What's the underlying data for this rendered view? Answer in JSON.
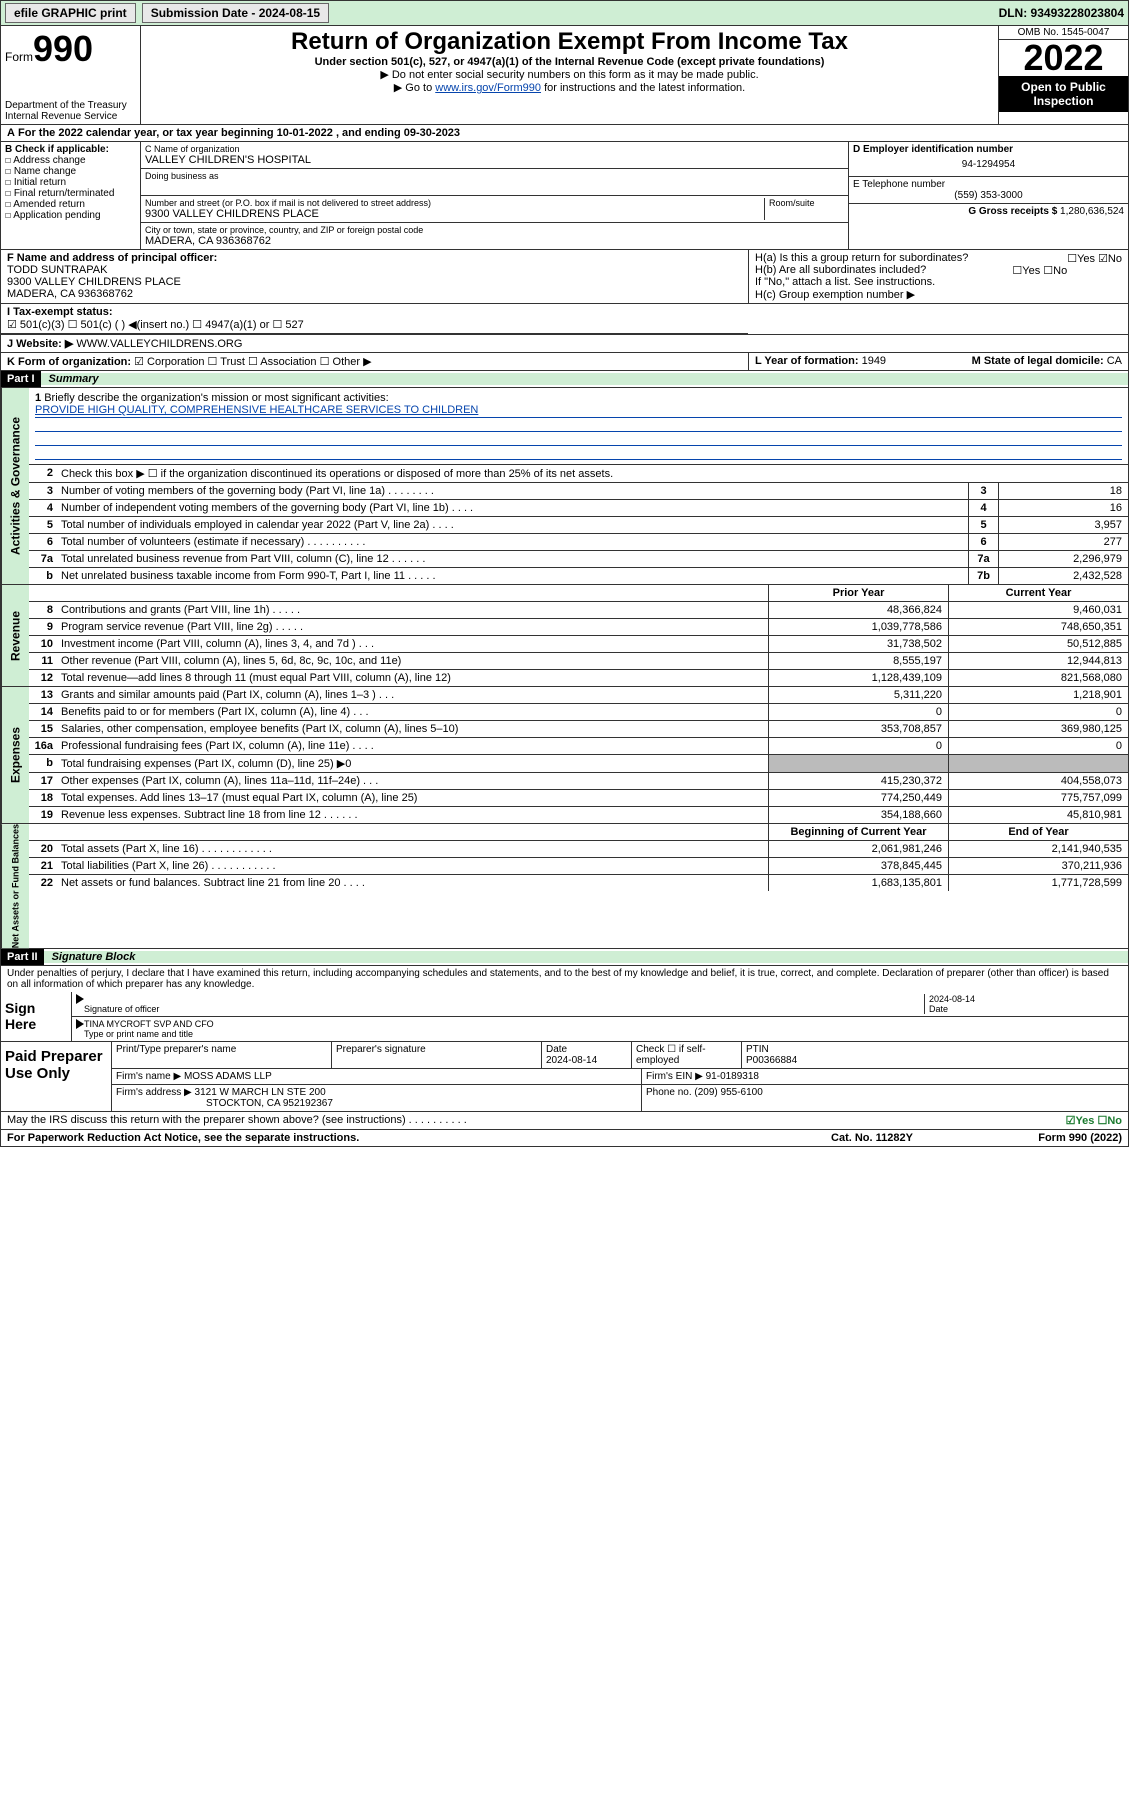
{
  "topbar": {
    "efile": "efile GRAPHIC print",
    "submission_label": "Submission Date - 2024-08-15",
    "dln": "DLN: 93493228023804"
  },
  "header": {
    "form_prefix": "Form",
    "form_num": "990",
    "dept": "Department of the Treasury Internal Revenue Service",
    "title": "Return of Organization Exempt From Income Tax",
    "sub": "Under section 501(c), 527, or 4947(a)(1) of the Internal Revenue Code (except private foundations)",
    "note1": "▶ Do not enter social security numbers on this form as it may be made public.",
    "note2_pre": "▶ Go to ",
    "note2_link": "www.irs.gov/Form990",
    "note2_post": " for instructions and the latest information.",
    "omb": "OMB No. 1545-0047",
    "year": "2022",
    "open": "Open to Public Inspection"
  },
  "period": "For the 2022 calendar year, or tax year beginning 10-01-2022   , and ending 09-30-2023",
  "boxB": {
    "label": "B Check if applicable:",
    "opts": [
      "Address change",
      "Name change",
      "Initial return",
      "Final return/terminated",
      "Amended return",
      "Application pending"
    ]
  },
  "boxC": {
    "name_lbl": "C Name of organization",
    "name": "VALLEY CHILDREN'S HOSPITAL",
    "dba_lbl": "Doing business as",
    "addr_lbl": "Number and street (or P.O. box if mail is not delivered to street address)",
    "room_lbl": "Room/suite",
    "addr": "9300 VALLEY CHILDRENS PLACE",
    "city_lbl": "City or town, state or province, country, and ZIP or foreign postal code",
    "city": "MADERA, CA  936368762"
  },
  "boxD": {
    "lbl": "D Employer identification number",
    "val": "94-1294954"
  },
  "boxE": {
    "lbl": "E Telephone number",
    "val": "(559) 353-3000"
  },
  "boxG": {
    "lbl": "G Gross receipts $",
    "val": "1,280,636,524"
  },
  "boxF": {
    "lbl": "F Name and address of principal officer:",
    "name": "TODD SUNTRAPAK",
    "addr": "9300 VALLEY CHILDRENS PLACE",
    "city": "MADERA, CA  936368762"
  },
  "boxH": {
    "ha": "H(a)  Is this a group return for subordinates?",
    "ha_ans": "☐Yes ☑No",
    "hb": "H(b)  Are all subordinates included?",
    "hb_ans": "☐Yes ☐No",
    "hb_note": "If \"No,\" attach a list. See instructions.",
    "hc": "H(c)  Group exemption number ▶"
  },
  "boxI": {
    "lbl": "I   Tax-exempt status:",
    "opts": "☑ 501(c)(3)   ☐ 501(c) (  ) ◀(insert no.)   ☐ 4947(a)(1) or  ☐ 527"
  },
  "boxJ": {
    "lbl": "J   Website: ▶",
    "val": "WWW.VALLEYCHILDRENS.ORG"
  },
  "boxK": {
    "lbl": "K Form of organization:",
    "opts": "☑ Corporation  ☐ Trust  ☐ Association  ☐ Other ▶"
  },
  "boxL": {
    "lbl": "L Year of formation:",
    "val": "1949"
  },
  "boxM": {
    "lbl": "M State of legal domicile:",
    "val": "CA"
  },
  "part1": {
    "section": "Part I",
    "title": "Summary",
    "vlabels": [
      "Activities & Governance",
      "Revenue",
      "Expenses",
      "Net Assets or Fund Balances"
    ],
    "line1": "Briefly describe the organization's mission or most significant activities:",
    "mission": "PROVIDE HIGH QUALITY, COMPREHENSIVE HEALTHCARE SERVICES TO CHILDREN",
    "line2": "Check this box ▶ ☐  if the organization discontinued its operations or disposed of more than 25% of its net assets.",
    "gov_rows": [
      {
        "n": "3",
        "d": "Number of voting members of the governing body (Part VI, line 1a)  .    .    .    .    .    .    .    .",
        "b": "3",
        "v": "18"
      },
      {
        "n": "4",
        "d": "Number of independent voting members of the governing body (Part VI, line 1b)  .    .    .    .",
        "b": "4",
        "v": "16"
      },
      {
        "n": "5",
        "d": "Total number of individuals employed in calendar year 2022 (Part V, line 2a)   .    .    .    .",
        "b": "5",
        "v": "3,957"
      },
      {
        "n": "6",
        "d": "Total number of volunteers (estimate if necessary)  .    .    .    .    .    .    .    .    .    .",
        "b": "6",
        "v": "277"
      },
      {
        "n": "7a",
        "d": "Total unrelated business revenue from Part VIII, column (C), line 12  .    .    .    .    .    .",
        "b": "7a",
        "v": "2,296,979"
      },
      {
        "n": "b",
        "d": "Net unrelated business taxable income from Form 990-T, Part I, line 11  .    .    .    .    .",
        "b": "7b",
        "v": "2,432,528"
      }
    ],
    "hdr2": {
      "py": "Prior Year",
      "cy": "Current Year"
    },
    "rev_rows": [
      {
        "n": "8",
        "d": "Contributions and grants (Part VIII, line 1h)   .    .    .    .    .",
        "py": "48,366,824",
        "cy": "9,460,031"
      },
      {
        "n": "9",
        "d": "Program service revenue (Part VIII, line 2g)   .    .    .    .    .",
        "py": "1,039,778,586",
        "cy": "748,650,351"
      },
      {
        "n": "10",
        "d": "Investment income (Part VIII, column (A), lines 3, 4, and 7d )   .    .    .",
        "py": "31,738,502",
        "cy": "50,512,885"
      },
      {
        "n": "11",
        "d": "Other revenue (Part VIII, column (A), lines 5, 6d, 8c, 9c, 10c, and 11e)",
        "py": "8,555,197",
        "cy": "12,944,813"
      },
      {
        "n": "12",
        "d": "Total revenue—add lines 8 through 11 (must equal Part VIII, column (A), line 12)",
        "py": "1,128,439,109",
        "cy": "821,568,080"
      }
    ],
    "exp_rows": [
      {
        "n": "13",
        "d": "Grants and similar amounts paid (Part IX, column (A), lines 1–3 )   .    .    .",
        "py": "5,311,220",
        "cy": "1,218,901"
      },
      {
        "n": "14",
        "d": "Benefits paid to or for members (Part IX, column (A), line 4)   .    .    .",
        "py": "0",
        "cy": "0"
      },
      {
        "n": "15",
        "d": "Salaries, other compensation, employee benefits (Part IX, column (A), lines 5–10)",
        "py": "353,708,857",
        "cy": "369,980,125"
      },
      {
        "n": "16a",
        "d": "Professional fundraising fees (Part IX, column (A), line 11e)   .    .    .    .",
        "py": "0",
        "cy": "0"
      },
      {
        "n": "b",
        "d": "Total fundraising expenses (Part IX, column (D), line 25) ▶0",
        "py": "",
        "cy": "",
        "shade": true
      },
      {
        "n": "17",
        "d": "Other expenses (Part IX, column (A), lines 11a–11d, 11f–24e)   .    .    .",
        "py": "415,230,372",
        "cy": "404,558,073"
      },
      {
        "n": "18",
        "d": "Total expenses. Add lines 13–17 (must equal Part IX, column (A), line 25)",
        "py": "774,250,449",
        "cy": "775,757,099"
      },
      {
        "n": "19",
        "d": "Revenue less expenses. Subtract line 18 from line 12   .    .    .    .    .    .",
        "py": "354,188,660",
        "cy": "45,810,981"
      }
    ],
    "hdr3": {
      "py": "Beginning of Current Year",
      "cy": "End of Year"
    },
    "net_rows": [
      {
        "n": "20",
        "d": "Total assets (Part X, line 16)   .    .    .    .    .    .    .    .    .    .    .    .",
        "py": "2,061,981,246",
        "cy": "2,141,940,535"
      },
      {
        "n": "21",
        "d": "Total liabilities (Part X, line 26)   .    .    .    .    .    .    .    .    .    .    .",
        "py": "378,845,445",
        "cy": "370,211,936"
      },
      {
        "n": "22",
        "d": "Net assets or fund balances. Subtract line 21 from line 20   .    .    .    .",
        "py": "1,683,135,801",
        "cy": "1,771,728,599"
      }
    ]
  },
  "part2": {
    "section": "Part II",
    "title": "Signature Block",
    "decl": "Under penalties of perjury, I declare that I have examined this return, including accompanying schedules and statements, and to the best of my knowledge and belief, it is true, correct, and complete. Declaration of preparer (other than officer) is based on all information of which preparer has any knowledge.",
    "sign_here": "Sign Here",
    "sig_officer": "Signature of officer",
    "date_lbl": "Date",
    "sig_date": "2024-08-14",
    "name_title": "TINA MYCROFT SVP AND CFO",
    "name_title_lbl": "Type or print name and title",
    "paid": "Paid Preparer Use Only",
    "prep_name_lbl": "Print/Type preparer's name",
    "prep_sig_lbl": "Preparer's signature",
    "prep_date_lbl": "Date",
    "prep_date": "2024-08-14",
    "check_self": "Check ☐ if self-employed",
    "ptin_lbl": "PTIN",
    "ptin": "P00366884",
    "firm_name_lbl": "Firm's name    ▶",
    "firm_name": "MOSS ADAMS LLP",
    "firm_ein_lbl": "Firm's EIN ▶",
    "firm_ein": "91-0189318",
    "firm_addr_lbl": "Firm's address ▶",
    "firm_addr1": "3121 W MARCH LN STE 200",
    "firm_addr2": "STOCKTON, CA  952192367",
    "phone_lbl": "Phone no.",
    "phone": "(209) 955-6100",
    "discuss": "May the IRS discuss this return with the preparer shown above? (see instructions)   .    .    .    .    .    .    .    .    .    .",
    "discuss_ans": "☑Yes  ☐No"
  },
  "footer": {
    "pra": "For Paperwork Reduction Act Notice, see the separate instructions.",
    "cat": "Cat. No. 11282Y",
    "form": "Form 990 (2022)"
  }
}
